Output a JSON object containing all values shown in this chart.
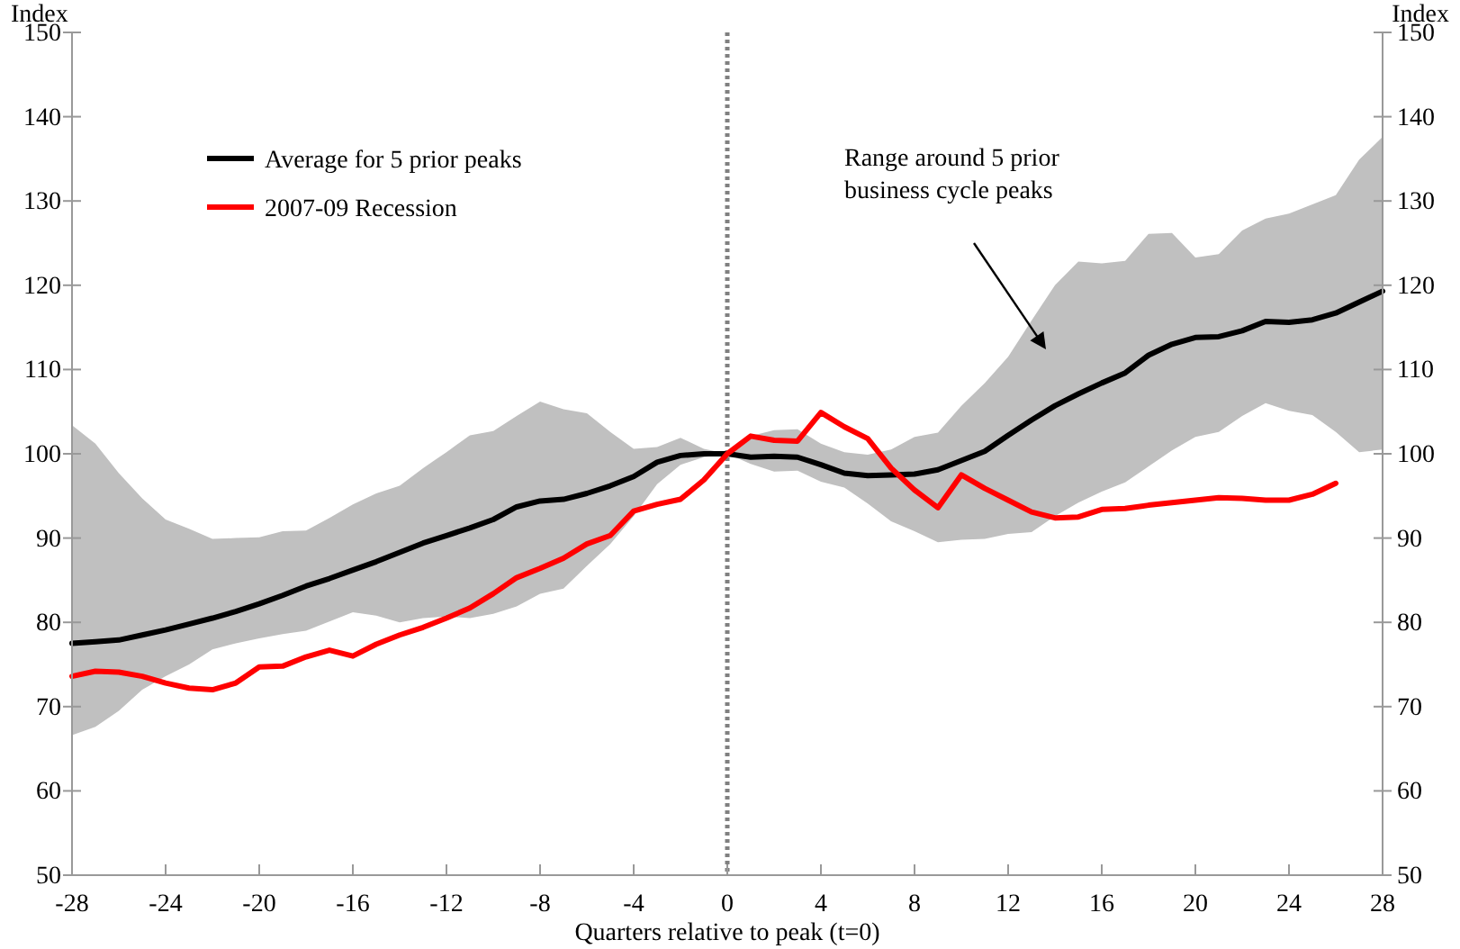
{
  "chart_data": {
    "type": "line",
    "xlabel": "Quarters relative to peak (t=0)",
    "ylabel": "Index",
    "y2label": "Index",
    "x": [
      -28,
      -27,
      -26,
      -25,
      -24,
      -23,
      -22,
      -21,
      -20,
      -19,
      -18,
      -17,
      -16,
      -15,
      -14,
      -13,
      -12,
      -11,
      -10,
      -9,
      -8,
      -7,
      -6,
      -5,
      -4,
      -3,
      -2,
      -1,
      0,
      1,
      2,
      3,
      4,
      5,
      6,
      7,
      8,
      9,
      10,
      11,
      12,
      13,
      14,
      15,
      16,
      17,
      18,
      19,
      20,
      21,
      22,
      23,
      24,
      25,
      26,
      27,
      28
    ],
    "series": [
      {
        "name": "Average for 5 prior peaks",
        "color": "#000000",
        "values": [
          77.5,
          77.7,
          77.9,
          78.5,
          79.1,
          79.8,
          80.5,
          81.3,
          82.2,
          83.2,
          84.3,
          85.2,
          86.2,
          87.2,
          88.3,
          89.4,
          90.3,
          91.2,
          92.2,
          93.7,
          94.4,
          94.6,
          95.3,
          96.2,
          97.3,
          99.0,
          99.8,
          100.0,
          100,
          99.6,
          99.7,
          99.6,
          98.7,
          97.7,
          97.4,
          97.5,
          97.6,
          98.1,
          99.2,
          100.3,
          102.2,
          104.0,
          105.7,
          107.1,
          108.4,
          109.6,
          111.7,
          113.0,
          113.8,
          113.9,
          114.6,
          115.7,
          115.6,
          115.9,
          116.7,
          118.0,
          119.3
        ],
        "lower": [
          66.6,
          67.6,
          69.5,
          72.0,
          73.6,
          75.0,
          76.8,
          77.5,
          78.1,
          78.6,
          79.0,
          80.1,
          81.2,
          80.8,
          80.0,
          80.5,
          80.7,
          80.5,
          81.0,
          81.9,
          83.4,
          84.0,
          86.7,
          89.3,
          92.6,
          96.4,
          98.7,
          99.6,
          100,
          98.8,
          97.9,
          98.0,
          96.7,
          96.0,
          94.1,
          92.0,
          90.8,
          89.5,
          89.8,
          89.9,
          90.5,
          90.7,
          92.6,
          94.2,
          95.5,
          96.6,
          98.5,
          100.4,
          102.0,
          102.6,
          104.5,
          106.0,
          105.1,
          104.6,
          102.6,
          100.2,
          100.5
        ],
        "upper": [
          103.4,
          101.2,
          97.7,
          94.7,
          92.2,
          91.1,
          89.9,
          90.0,
          90.1,
          90.8,
          90.9,
          92.4,
          94.0,
          95.3,
          96.2,
          98.3,
          100.2,
          102.2,
          102.7,
          104.5,
          106.2,
          105.3,
          104.8,
          102.6,
          100.6,
          100.8,
          101.9,
          100.6,
          100.0,
          102.1,
          102.8,
          102.9,
          101.2,
          100.2,
          99.9,
          100.5,
          102.0,
          102.5,
          105.7,
          108.4,
          111.5,
          115.8,
          120.0,
          122.8,
          122.6,
          122.9,
          126.1,
          126.2,
          123.3,
          123.7,
          126.5,
          127.9,
          128.5,
          129.6,
          130.7,
          134.9,
          137.6
        ]
      },
      {
        "name": "2007-09 Recession",
        "color": "#ff0000",
        "values": [
          73.6,
          74.2,
          74.1,
          73.6,
          72.8,
          72.2,
          72.0,
          72.8,
          74.7,
          74.8,
          75.9,
          76.7,
          76.0,
          77.4,
          78.5,
          79.4,
          80.5,
          81.7,
          83.4,
          85.3,
          86.4,
          87.6,
          89.3,
          90.3,
          93.2,
          94.0,
          94.6,
          96.9,
          100,
          102.1,
          101.6,
          101.5,
          104.9,
          103.2,
          101.8,
          98.3,
          95.7,
          93.6,
          97.5,
          95.9,
          94.5,
          93.1,
          92.4,
          92.5,
          93.4,
          93.5,
          93.9,
          94.2,
          94.5,
          94.8,
          94.7,
          94.5,
          94.5,
          95.2,
          96.5,
          null,
          null
        ]
      }
    ],
    "xlim": [
      -28,
      28
    ],
    "xticks": [
      -28,
      -24,
      -20,
      -16,
      -12,
      -8,
      -4,
      0,
      4,
      8,
      12,
      16,
      20,
      24,
      28
    ],
    "ylim": [
      50,
      150
    ],
    "yticks": [
      50,
      60,
      70,
      80,
      90,
      100,
      110,
      120,
      130,
      140,
      150
    ],
    "y2lim": [
      50,
      150
    ],
    "y2ticks": [
      50,
      60,
      70,
      80,
      90,
      100,
      110,
      120,
      130,
      140,
      150
    ],
    "ref_lines": [
      {
        "axis": "x",
        "value": 0,
        "color": "#808080",
        "line_style": "dotted"
      }
    ],
    "annotations": [
      "Range around 5 prior business cycle peaks"
    ],
    "legend": "top left",
    "grid": false,
    "marker": "none",
    "line_style": "solid"
  }
}
